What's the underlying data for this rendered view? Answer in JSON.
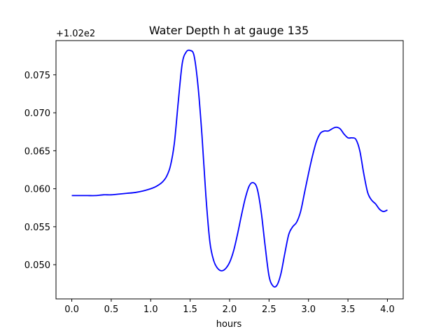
{
  "chart_data": {
    "type": "line",
    "title": "Water Depth h at gauge 135",
    "xlabel": "hours",
    "ylabel": "",
    "offset_label": "+1.02e2",
    "xlim": [
      -0.2,
      4.2
    ],
    "ylim": [
      0.0455,
      0.0795
    ],
    "x_ticks": [
      0.0,
      0.5,
      1.0,
      1.5,
      2.0,
      2.5,
      3.0,
      3.5,
      4.0
    ],
    "x_tick_labels": [
      "0.0",
      "0.5",
      "1.0",
      "1.5",
      "2.0",
      "2.5",
      "3.0",
      "3.5",
      "4.0"
    ],
    "y_ticks": [
      0.05,
      0.055,
      0.06,
      0.065,
      0.07,
      0.075
    ],
    "y_tick_labels": [
      "0.050",
      "0.055",
      "0.060",
      "0.065",
      "0.070",
      "0.075"
    ],
    "grid": false,
    "line_color": "#0000ff",
    "series": [
      {
        "x": [
          0.0,
          0.1,
          0.2,
          0.3,
          0.4,
          0.5,
          0.6,
          0.7,
          0.8,
          0.9,
          1.0,
          1.05,
          1.1,
          1.15,
          1.2,
          1.25,
          1.3,
          1.35,
          1.4,
          1.45,
          1.5,
          1.55,
          1.6,
          1.65,
          1.7,
          1.75,
          1.8,
          1.85,
          1.9,
          1.95,
          2.0,
          2.05,
          2.1,
          2.15,
          2.2,
          2.25,
          2.3,
          2.35,
          2.4,
          2.45,
          2.5,
          2.55,
          2.6,
          2.65,
          2.7,
          2.75,
          2.8,
          2.85,
          2.9,
          2.95,
          3.0,
          3.05,
          3.1,
          3.15,
          3.2,
          3.25,
          3.3,
          3.35,
          3.4,
          3.45,
          3.5,
          3.55,
          3.6,
          3.65,
          3.7,
          3.75,
          3.8,
          3.85,
          3.9,
          3.95,
          4.0
        ],
        "y": [
          0.0591,
          0.0591,
          0.0591,
          0.0591,
          0.0592,
          0.0592,
          0.0593,
          0.0594,
          0.0595,
          0.0597,
          0.06,
          0.0602,
          0.0605,
          0.0609,
          0.0616,
          0.063,
          0.066,
          0.0715,
          0.0765,
          0.078,
          0.0782,
          0.0775,
          0.0735,
          0.067,
          0.059,
          0.053,
          0.0505,
          0.0495,
          0.0492,
          0.0495,
          0.0503,
          0.0518,
          0.054,
          0.0565,
          0.0588,
          0.0604,
          0.0608,
          0.06,
          0.057,
          0.0525,
          0.0485,
          0.0472,
          0.0473,
          0.0488,
          0.0515,
          0.054,
          0.055,
          0.0556,
          0.057,
          0.0595,
          0.062,
          0.0643,
          0.0662,
          0.0673,
          0.0676,
          0.0676,
          0.0679,
          0.0681,
          0.0679,
          0.0672,
          0.0667,
          0.0667,
          0.0665,
          0.065,
          0.062,
          0.0595,
          0.0585,
          0.058,
          0.0573,
          0.057,
          0.0572
        ]
      }
    ]
  }
}
